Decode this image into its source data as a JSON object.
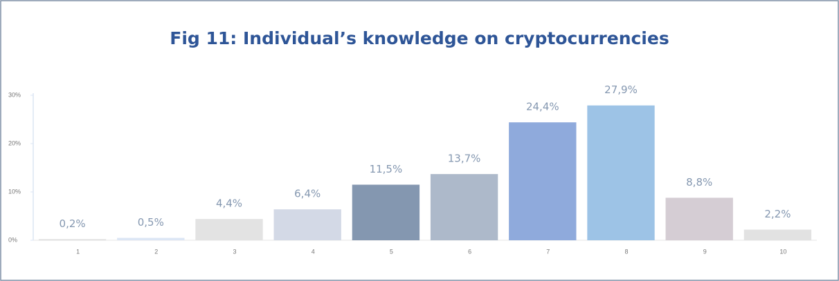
{
  "chart_data": {
    "type": "bar",
    "title": "Fig 11: Individual’s knowledge on cryptocurrencies",
    "categories": [
      "1",
      "2",
      "3",
      "4",
      "5",
      "6",
      "7",
      "8",
      "9",
      "10"
    ],
    "values": [
      0.2,
      0.5,
      4.4,
      6.4,
      11.5,
      13.7,
      24.4,
      27.9,
      8.8,
      2.2
    ],
    "value_labels": [
      "0,2%",
      "0,5%",
      "4,4%",
      "6,4%",
      "11,5%",
      "13,7%",
      "24,4%",
      "27,9%",
      "8,8%",
      "2,2%"
    ],
    "colors": [
      "#d9d9d9",
      "#dce6f5",
      "#e3e3e3",
      "#d3d9e6",
      "#8497b0",
      "#adb9ca",
      "#8faadc",
      "#9dc3e6",
      "#d5cdd4",
      "#e2e2e2"
    ],
    "ylim": [
      0,
      30
    ],
    "yticks": [
      {
        "value": 0,
        "label": "0%"
      },
      {
        "value": 10,
        "label": "10%"
      },
      {
        "value": 20,
        "label": "20%"
      },
      {
        "value": 30,
        "label": "30%"
      }
    ],
    "grid": false
  }
}
